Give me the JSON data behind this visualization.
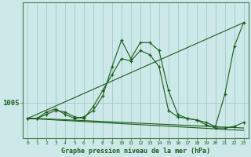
{
  "bg_color": "#cce8e8",
  "plot_bg_color": "#cce8e8",
  "grid_color": "#a8c8c8",
  "line_color": "#1a5c1a",
  "xlabel": "Graphe pression niveau de la mer (hPa)",
  "ytick_label": "1005",
  "ytick_value": 1005,
  "ylim": [
    1000.5,
    1017.5
  ],
  "xlim": [
    -0.5,
    23.5
  ],
  "xticks": [
    0,
    1,
    2,
    3,
    4,
    5,
    6,
    7,
    8,
    9,
    10,
    11,
    12,
    13,
    14,
    15,
    16,
    17,
    18,
    19,
    20,
    21,
    22,
    23
  ],
  "series_main": {
    "x": [
      0,
      1,
      2,
      3,
      4,
      5,
      6,
      7,
      8,
      9,
      10,
      11,
      12,
      13,
      14,
      15,
      16,
      17,
      18,
      19,
      20,
      21,
      22,
      23
    ],
    "y": [
      1003.0,
      1003.0,
      1003.5,
      1004.0,
      1003.8,
      1003.2,
      1003.0,
      1004.5,
      1006.5,
      1008.5,
      1010.5,
      1010.2,
      1011.5,
      1011.0,
      1009.5,
      1004.0,
      1003.2,
      1003.0,
      1002.8,
      1002.5,
      1002.0,
      1006.0,
      1012.0,
      1015.0
    ]
  },
  "series_secondary": {
    "x": [
      0,
      1,
      2,
      3,
      4,
      5,
      6,
      7,
      8,
      9,
      10,
      11,
      12,
      13,
      14,
      15,
      16,
      17,
      18,
      19,
      20,
      21,
      22,
      23
    ],
    "y": [
      1003.0,
      1003.0,
      1003.8,
      1004.2,
      1003.5,
      1003.0,
      1003.2,
      1004.0,
      1005.8,
      1009.5,
      1012.8,
      1010.5,
      1012.5,
      1012.5,
      1011.5,
      1006.5,
      1003.5,
      1003.0,
      1002.8,
      1002.2,
      1001.8,
      1001.8,
      1002.0,
      1002.5
    ]
  },
  "trend_up": {
    "x": [
      0,
      23
    ],
    "y": [
      1003.0,
      1015.0
    ]
  },
  "trend_flat1": {
    "x": [
      0,
      23
    ],
    "y": [
      1003.0,
      1001.5
    ]
  },
  "trend_flat2": {
    "x": [
      1,
      23
    ],
    "y": [
      1003.0,
      1001.8
    ]
  }
}
